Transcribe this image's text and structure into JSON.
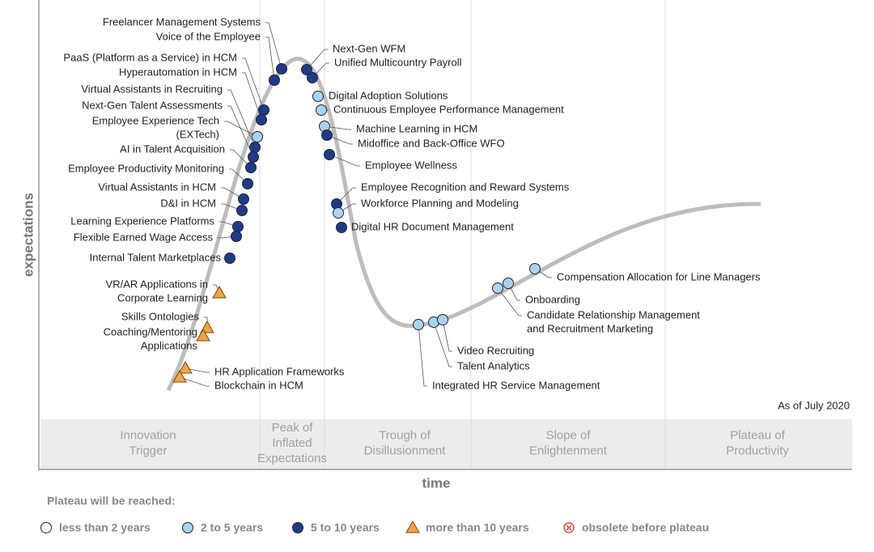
{
  "axes": {
    "y_label": "expectations",
    "x_label": "time"
  },
  "note": "As of July 2020",
  "phases": [
    [
      "Innovation",
      "Trigger"
    ],
    [
      "Peak of",
      "Inflated",
      "Expectations"
    ],
    [
      "Trough of",
      "Disillusionment"
    ],
    [
      "Slope of",
      "Enlightenment"
    ],
    [
      "Plateau of",
      "Productivity"
    ]
  ],
  "legend": {
    "title": "Plateau will be reached:",
    "items": [
      {
        "label": "less than 2 years",
        "shape": "circle",
        "color": "#ffffff"
      },
      {
        "label": "2 to 5 years",
        "shape": "circle",
        "color": "#a9d3ee"
      },
      {
        "label": "5 to 10 years",
        "shape": "circle",
        "color": "#1f3a8a"
      },
      {
        "label": "more than 10 years",
        "shape": "triangle",
        "color": "#f2a341"
      },
      {
        "label": "obsolete before plateau",
        "shape": "cross",
        "color": "#e8482f"
      }
    ]
  },
  "nodes": [
    {
      "label": [
        "Freelancer Management Systems"
      ],
      "status": 2
    },
    {
      "label": [
        "Voice of the Employee"
      ],
      "status": 2
    },
    {
      "label": [
        "PaaS (Platform as a Service) in HCM"
      ],
      "status": 2
    },
    {
      "label": [
        "Hyperautomation in HCM"
      ],
      "status": 2
    },
    {
      "label": [
        "Virtual Assistants in Recruiting"
      ],
      "status": 2
    },
    {
      "label": [
        "Next-Gen Talent Assessments"
      ],
      "status": 2
    },
    {
      "label": [
        "Employee Experience Tech",
        "(EXTech)"
      ],
      "status": 1
    },
    {
      "label": [
        "AI in Talent Acquisition"
      ],
      "status": 2
    },
    {
      "label": [
        "Employee Productivity Monitoring"
      ],
      "status": 2
    },
    {
      "label": [
        "Virtual Assistants in HCM"
      ],
      "status": 2
    },
    {
      "label": [
        "D&I in HCM"
      ],
      "status": 2
    },
    {
      "label": [
        "Learning Experience Platforms"
      ],
      "status": 2
    },
    {
      "label": [
        "Flexible Earned Wage Access"
      ],
      "status": 2
    },
    {
      "label": [
        "Internal Talent Marketplaces"
      ],
      "status": 2
    },
    {
      "label": [
        "VR/AR Applications in",
        "Corporate Learning"
      ],
      "status": 3
    },
    {
      "label": [
        "Skills Ontologies"
      ],
      "status": 3
    },
    {
      "label": [
        "Coaching/Mentoring",
        "Applications"
      ],
      "status": 3
    },
    {
      "label": [
        "HR Application Frameworks"
      ],
      "status": 3
    },
    {
      "label": [
        "Blockchain in HCM"
      ],
      "status": 3
    },
    {
      "label": [
        "Next-Gen WFM"
      ],
      "status": 2
    },
    {
      "label": [
        "Unified Multicountry Payroll"
      ],
      "status": 2
    },
    {
      "label": [
        "Digital Adoption Solutions"
      ],
      "status": 1
    },
    {
      "label": [
        "Continuous Employee Performance Management"
      ],
      "status": 1
    },
    {
      "label": [
        "Machine Learning in HCM"
      ],
      "status": 1
    },
    {
      "label": [
        "Midoffice and Back-Office WFO"
      ],
      "status": 2
    },
    {
      "label": [
        "Employee Wellness"
      ],
      "status": 2
    },
    {
      "label": [
        "Employee Recognition and Reward Systems"
      ],
      "status": 2
    },
    {
      "label": [
        "Workforce Planning and Modeling"
      ],
      "status": 1
    },
    {
      "label": [
        "Digital HR Document Management"
      ],
      "status": 2
    },
    {
      "label": [
        "Integrated HR Service Management"
      ],
      "status": 1
    },
    {
      "label": [
        "Talent Analytics"
      ],
      "status": 1
    },
    {
      "label": [
        "Video Recruiting"
      ],
      "status": 1
    },
    {
      "label": [
        "Candidate Relationship Management",
        "and Recruitment Marketing"
      ],
      "status": 1
    },
    {
      "label": [
        "Onboarding"
      ],
      "status": 1
    },
    {
      "label": [
        "Compensation Allocation for Line Managers"
      ],
      "status": 1
    }
  ]
}
